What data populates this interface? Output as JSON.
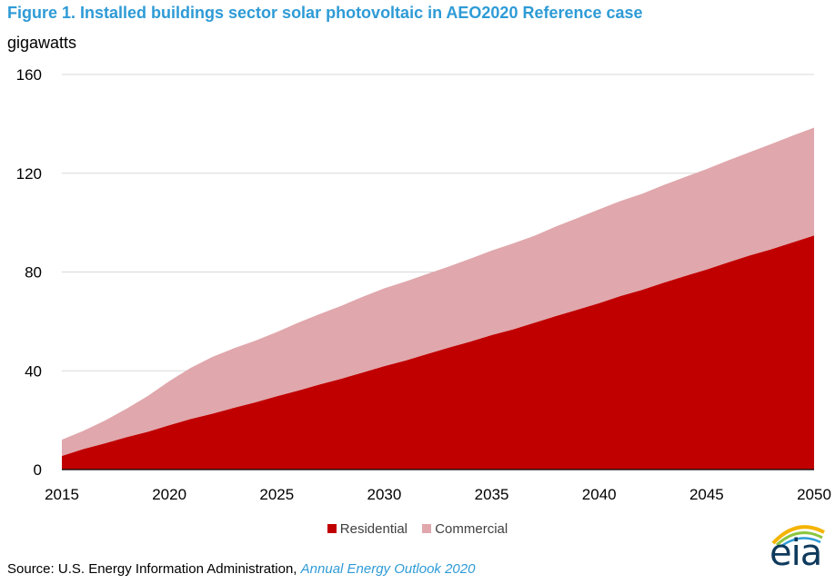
{
  "header": {
    "title": "Figure 1. Installed buildings sector solar photovoltaic in AEO2020 Reference case",
    "unit_label": "gigawatts"
  },
  "footer": {
    "source_prefix": "Source: U.S. Energy Information Administration,",
    "source_publication": "Annual Energy Outlook 2020",
    "logo_text": "eia"
  },
  "colors": {
    "residential": "#c00000",
    "commercial": "#e0a7ac",
    "title": "#2e9bd6",
    "logo_dark": "#0e3a5c",
    "logo_accent_1": "#f4b400",
    "logo_accent_2": "#8cc63f",
    "logo_accent_3": "#2e9bd6"
  },
  "chart_data": {
    "type": "area",
    "stacked": true,
    "x": [
      2015,
      2016,
      2017,
      2018,
      2019,
      2020,
      2021,
      2022,
      2023,
      2024,
      2025,
      2026,
      2027,
      2028,
      2029,
      2030,
      2031,
      2032,
      2033,
      2034,
      2035,
      2036,
      2037,
      2038,
      2039,
      2040,
      2041,
      2042,
      2043,
      2044,
      2045,
      2046,
      2047,
      2048,
      2049,
      2050
    ],
    "series": [
      {
        "name": "Residential",
        "values": [
          5.5,
          8.3,
          10.6,
          13.1,
          15.3,
          18,
          20.5,
          22.6,
          25,
          27.2,
          29.7,
          32,
          34.5,
          36.8,
          39.3,
          41.9,
          44.2,
          46.8,
          49.4,
          51.8,
          54.5,
          56.8,
          59.5,
          62.2,
          64.8,
          67.4,
          70.3,
          72.8,
          75.7,
          78.4,
          81,
          83.9,
          86.7,
          89.2,
          92,
          94.8
        ],
        "color": "#c00000"
      },
      {
        "name": "Commercial",
        "values": [
          6.6,
          7.4,
          9.2,
          11.5,
          14.5,
          17.8,
          20.7,
          23,
          24.1,
          25,
          26,
          27.5,
          28.5,
          29.5,
          30.7,
          31.5,
          32,
          32.4,
          32.8,
          33.6,
          34.2,
          34.8,
          35.2,
          36.3,
          37.1,
          38,
          38.5,
          38.9,
          39.5,
          40.1,
          40.7,
          41.3,
          41.8,
          42.6,
          43.2,
          43.7
        ],
        "color": "#e0a7ac"
      }
    ],
    "xticks": [
      2015,
      2020,
      2025,
      2030,
      2035,
      2040,
      2045,
      2050
    ],
    "yticks": [
      0,
      40,
      80,
      120,
      160
    ],
    "xlim": [
      2015,
      2050
    ],
    "ylim": [
      0,
      160
    ],
    "grid": "horizontal",
    "legend_position": "bottom-center",
    "title": "Figure 1. Installed buildings sector solar photovoltaic in AEO2020 Reference case",
    "ylabel": "gigawatts",
    "xlabel": ""
  }
}
